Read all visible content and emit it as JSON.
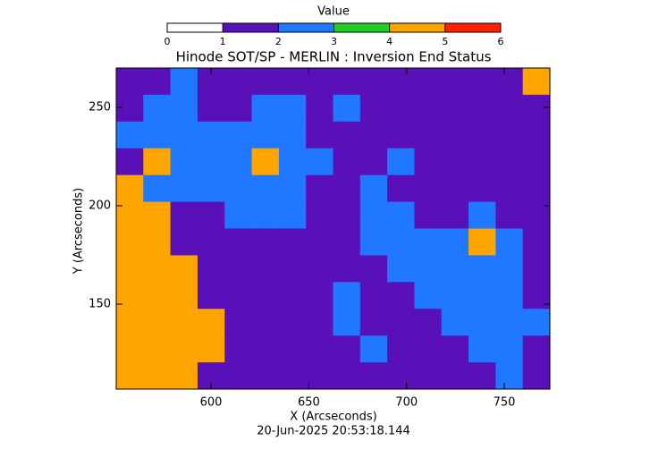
{
  "chart_data": {
    "type": "heatmap",
    "title": "Hinode SOT/SP - MERLIN : Inversion End Status",
    "x_label": "X (Arcseconds)",
    "y_label": "Y (Arcseconds)",
    "timestamp": "20-Jun-2025 20:53:18.144",
    "xlim": [
      551.5,
      773.3
    ],
    "ylim": [
      106.8,
      270
    ],
    "xticks": [
      600,
      650,
      700,
      750
    ],
    "yticks": [
      150,
      200,
      250
    ],
    "colorbar": {
      "label": "Value",
      "lim": [
        0,
        6
      ],
      "ticks": [
        0,
        1,
        2,
        3,
        4,
        5,
        6
      ],
      "colors": [
        "#ffffff",
        "#5a10b8",
        "#1f78ff",
        "#22cc22",
        "#ffa500",
        "#ff2200"
      ]
    },
    "z": [
      [
        1,
        1,
        2,
        1,
        1,
        1,
        1,
        1,
        1,
        1,
        1,
        1,
        1,
        1,
        1,
        4
      ],
      [
        1,
        2,
        2,
        1,
        1,
        2,
        2,
        1,
        2,
        1,
        1,
        1,
        1,
        1,
        1,
        1
      ],
      [
        2,
        2,
        2,
        2,
        2,
        2,
        2,
        1,
        1,
        1,
        1,
        1,
        1,
        1,
        1,
        1
      ],
      [
        1,
        4,
        2,
        2,
        2,
        4,
        2,
        2,
        1,
        1,
        2,
        1,
        1,
        1,
        1,
        1
      ],
      [
        4,
        2,
        2,
        2,
        2,
        2,
        2,
        1,
        1,
        2,
        1,
        1,
        1,
        1,
        1,
        1
      ],
      [
        4,
        4,
        1,
        1,
        2,
        2,
        2,
        1,
        1,
        2,
        2,
        1,
        1,
        2,
        1,
        1
      ],
      [
        4,
        4,
        1,
        1,
        1,
        1,
        1,
        1,
        1,
        2,
        2,
        2,
        2,
        4,
        2,
        1
      ],
      [
        4,
        4,
        4,
        1,
        1,
        1,
        1,
        1,
        1,
        1,
        2,
        2,
        2,
        2,
        2,
        1
      ],
      [
        4,
        4,
        4,
        1,
        1,
        1,
        1,
        1,
        2,
        1,
        1,
        2,
        2,
        2,
        2,
        1
      ],
      [
        4,
        4,
        4,
        4,
        1,
        1,
        1,
        1,
        2,
        1,
        1,
        1,
        2,
        2,
        2,
        2
      ],
      [
        4,
        4,
        4,
        4,
        1,
        1,
        1,
        1,
        1,
        2,
        1,
        1,
        1,
        2,
        2,
        1
      ],
      [
        4,
        4,
        4,
        1,
        1,
        1,
        1,
        1,
        1,
        1,
        1,
        1,
        1,
        1,
        2,
        1
      ]
    ]
  }
}
